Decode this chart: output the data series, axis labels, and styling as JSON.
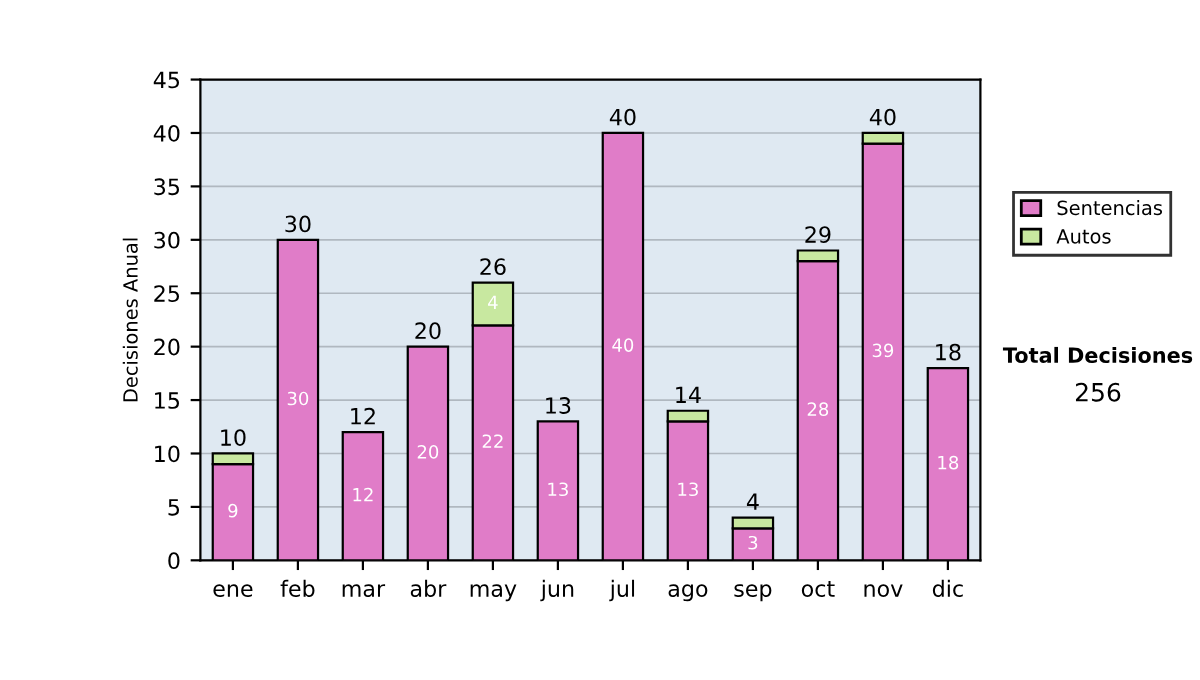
{
  "chart_data": {
    "type": "bar",
    "stacked": true,
    "ylabel": "Decisiones Anual",
    "categories": [
      "ene",
      "feb",
      "mar",
      "abr",
      "may",
      "jun",
      "jul",
      "ago",
      "sep",
      "oct",
      "nov",
      "dic"
    ],
    "series": [
      {
        "name": "Sentencias",
        "color": "#e07cc8",
        "values": [
          9,
          30,
          12,
          20,
          22,
          13,
          40,
          13,
          3,
          28,
          39,
          18
        ],
        "value_labels": [
          "9",
          "30",
          "12",
          "20",
          "22",
          "13",
          "40",
          "13",
          "3",
          "28",
          "39",
          "18"
        ]
      },
      {
        "name": "Autos",
        "color": "#c8e8a0",
        "values": [
          1,
          0,
          0,
          0,
          4,
          0,
          0,
          1,
          1,
          1,
          1,
          0
        ],
        "value_labels": [
          null,
          null,
          null,
          null,
          "4",
          null,
          null,
          null,
          null,
          null,
          null,
          null
        ]
      }
    ],
    "totals": [
      "10",
      "30",
      "12",
      "20",
      "26",
      "13",
      "40",
      "14",
      "4",
      "29",
      "40",
      "18"
    ],
    "ylim": [
      0,
      45
    ],
    "yticks": [
      0,
      5,
      10,
      15,
      20,
      25,
      30,
      35,
      40,
      45
    ],
    "grid": "y",
    "legend": "right",
    "annotations": [
      "Total Decisiones",
      "256"
    ]
  }
}
